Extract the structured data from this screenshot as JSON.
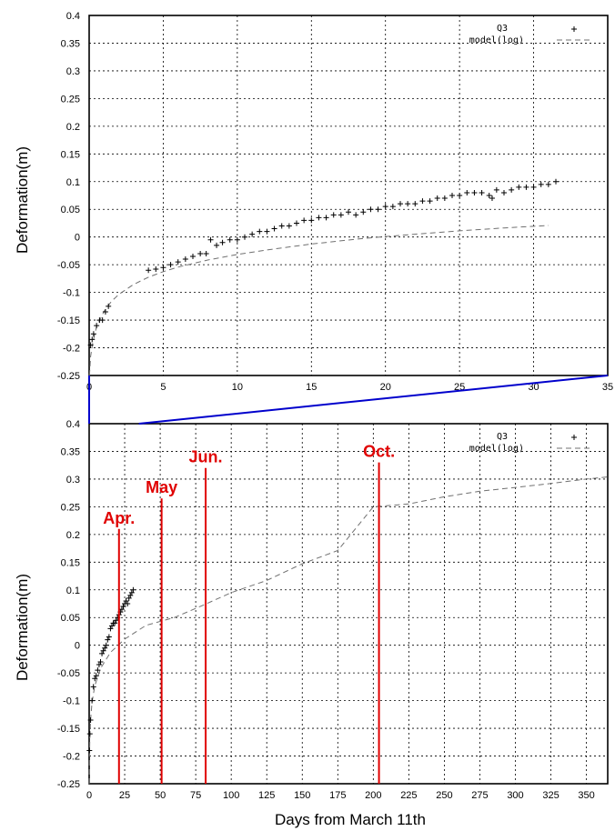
{
  "colors": {
    "data": "#000000",
    "model": "#707070",
    "month": "#e00000",
    "zoom": "#0000cc",
    "grid": "#000000"
  },
  "chart_data": [
    {
      "type": "scatter",
      "title": "",
      "xlabel": "",
      "ylabel": "Deformation(m)",
      "xlim": [
        0,
        35
      ],
      "ylim": [
        -0.25,
        0.4
      ],
      "grid": true,
      "legend_position": "top-right",
      "x_ticks": [
        "0",
        "5",
        "10",
        "15",
        "20",
        "25",
        "30",
        "35"
      ],
      "y_ticks": [
        "-0.25",
        "-0.2",
        "-0.15",
        "-0.1",
        "-0.05",
        "0",
        "0.05",
        "0.1",
        "0.15",
        "0.2",
        "0.25",
        "0.3",
        "0.35",
        "0.4"
      ],
      "series": [
        {
          "name": "Q3",
          "marker": "+",
          "x": [
            0.1,
            0.2,
            0.3,
            0.5,
            0.7,
            0.9,
            1.1,
            1.3,
            4.0,
            4.5,
            5.0,
            5.5,
            6.0,
            6.5,
            7.0,
            7.5,
            7.9,
            8.2,
            8.6,
            9.0,
            9.5,
            10.0,
            10.5,
            11.0,
            11.5,
            12.0,
            12.5,
            13.0,
            13.5,
            14.0,
            14.5,
            15.0,
            15.5,
            16.0,
            16.5,
            17.0,
            17.5,
            18.0,
            18.5,
            19.0,
            19.5,
            20.0,
            20.5,
            21.0,
            21.5,
            22.0,
            22.5,
            23.0,
            23.5,
            24.0,
            24.5,
            25.0,
            25.5,
            26.0,
            26.5,
            27.0,
            27.2,
            27.5,
            28.0,
            28.5,
            29.0,
            29.5,
            30.0,
            30.5,
            31.0,
            31.5
          ],
          "y": [
            -0.195,
            -0.185,
            -0.175,
            -0.16,
            -0.15,
            -0.15,
            -0.135,
            -0.125,
            -0.06,
            -0.058,
            -0.055,
            -0.05,
            -0.045,
            -0.04,
            -0.035,
            -0.03,
            -0.03,
            -0.005,
            -0.015,
            -0.01,
            -0.005,
            -0.005,
            0.0,
            0.005,
            0.01,
            0.01,
            0.015,
            0.02,
            0.02,
            0.025,
            0.03,
            0.03,
            0.035,
            0.035,
            0.04,
            0.04,
            0.045,
            0.04,
            0.045,
            0.05,
            0.05,
            0.055,
            0.055,
            0.06,
            0.06,
            0.06,
            0.065,
            0.065,
            0.07,
            0.07,
            0.075,
            0.075,
            0.08,
            0.08,
            0.08,
            0.075,
            0.07,
            0.085,
            0.08,
            0.085,
            0.09,
            0.09,
            0.09,
            0.095,
            0.095,
            0.1
          ]
        },
        {
          "name": "model(log)",
          "line": "dashed",
          "x": [
            0.02,
            0.1,
            0.25,
            0.5,
            1,
            1.5,
            2,
            3,
            4,
            5,
            6,
            8,
            10,
            12,
            15,
            18,
            20,
            22,
            25,
            28,
            31
          ],
          "y": [
            -0.25,
            -0.2155,
            -0.1897,
            -0.1621,
            -0.1344,
            -0.1164,
            -0.1036,
            -0.0855,
            -0.0726,
            -0.0626,
            -0.0544,
            -0.0415,
            -0.0315,
            -0.0233,
            -0.0127,
            -0.004,
            0.0008,
            0.0051,
            0.0111,
            0.0164,
            0.0209
          ]
        }
      ]
    },
    {
      "type": "scatter",
      "title": "",
      "xlabel": "Days from March 11th",
      "ylabel": "Deformation(m)",
      "xlim": [
        0,
        365
      ],
      "ylim": [
        -0.25,
        0.4
      ],
      "grid": true,
      "legend_position": "top-right",
      "x_ticks": [
        "0",
        "25",
        "50",
        "75",
        "100",
        "125",
        "150",
        "175",
        "200",
        "225",
        "250",
        "275",
        "300",
        "325",
        "350"
      ],
      "y_ticks": [
        "-0.25",
        "-0.2",
        "-0.15",
        "-0.1",
        "-0.05",
        "0",
        "0.05",
        "0.1",
        "0.15",
        "0.2",
        "0.25",
        "0.3",
        "0.35",
        "0.4"
      ],
      "series": [
        {
          "name": "Q3",
          "marker": "+",
          "x": [
            0.2,
            0.5,
            1,
            2,
            3,
            4,
            5,
            6,
            7,
            8,
            9,
            10,
            11,
            12,
            13,
            14,
            15,
            16,
            17,
            18,
            19,
            20,
            21,
            22,
            23,
            24,
            25,
            26,
            27,
            28,
            29,
            30,
            31
          ],
          "y": [
            -0.19,
            -0.16,
            -0.135,
            -0.1,
            -0.075,
            -0.06,
            -0.055,
            -0.045,
            -0.035,
            -0.03,
            -0.015,
            -0.01,
            -0.005,
            0.0,
            0.01,
            0.015,
            0.03,
            0.035,
            0.04,
            0.04,
            0.045,
            0.05,
            0.055,
            0.06,
            0.065,
            0.07,
            0.075,
            0.08,
            0.075,
            0.085,
            0.09,
            0.095,
            0.1
          ]
        },
        {
          "name": "model(log)",
          "line": "dashed",
          "x": [
            0.05,
            0.2,
            0.5,
            1,
            2,
            4,
            8,
            15,
            25,
            40,
            60,
            80,
            100,
            125,
            150,
            175,
            200,
            225,
            250,
            275,
            300,
            325,
            350,
            365
          ],
          "y": [
            -0.25,
            -0.206,
            -0.162,
            -0.134,
            -0.104,
            -0.073,
            -0.042,
            -0.013,
            0.011,
            0.036,
            0.05,
            0.072,
            0.095,
            0.117,
            0.147,
            0.171,
            0.25,
            0.255,
            0.268,
            0.278,
            0.285,
            0.292,
            0.3,
            0.304
          ]
        }
      ],
      "month_markers": [
        {
          "label": "Apr.",
          "day": 21,
          "top": 0.21
        },
        {
          "label": "May",
          "day": 51,
          "top": 0.265
        },
        {
          "label": "Jun.",
          "day": 82,
          "top": 0.32
        },
        {
          "label": "Oct.",
          "day": 204,
          "top": 0.33
        }
      ]
    }
  ]
}
